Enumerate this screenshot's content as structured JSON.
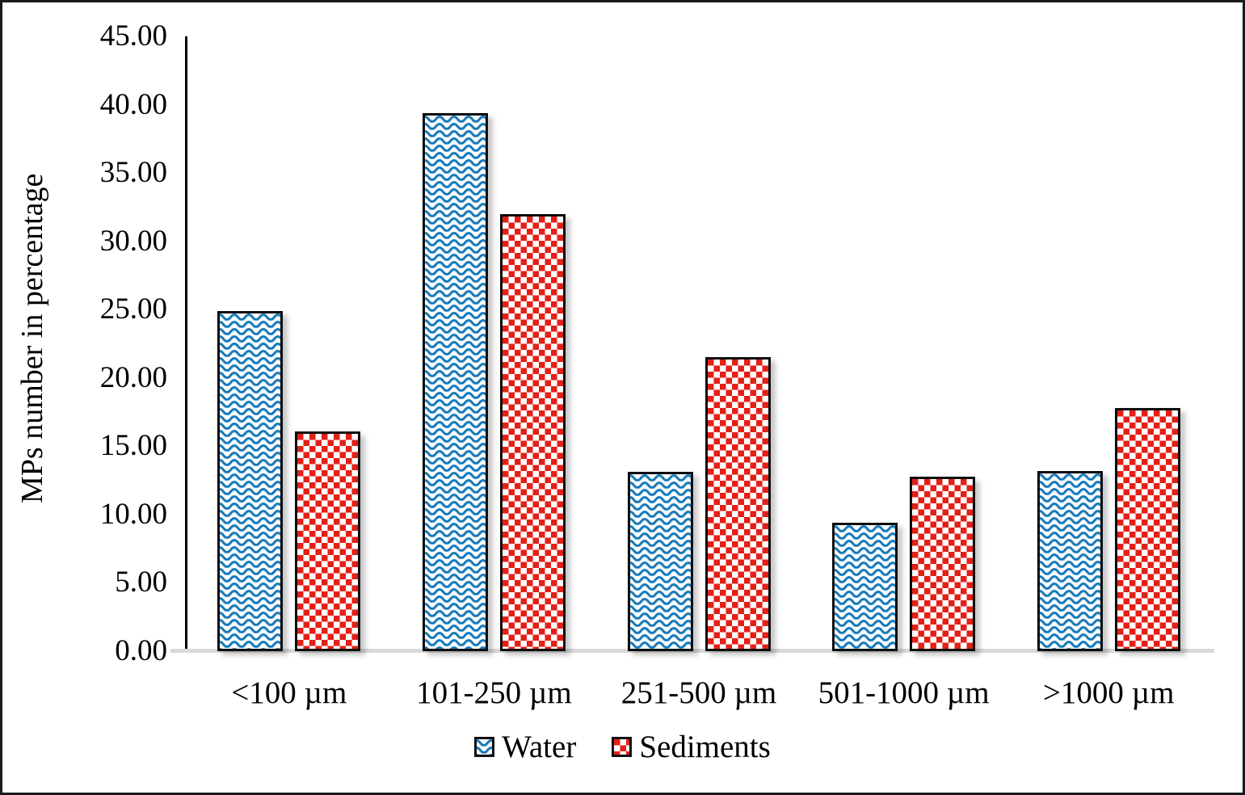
{
  "figure": {
    "background": "#ffffff",
    "border_color": "#1a1a1a"
  },
  "chart_data": {
    "type": "bar",
    "title": "",
    "categories": [
      "<100 µm",
      "101-250 µm",
      "251-500 µm",
      "501-1000 µm",
      ">1000 µm"
    ],
    "series": [
      {
        "name": "Water",
        "pattern": "wavy",
        "color": "#1878b8",
        "values": [
          24.9,
          39.4,
          13.1,
          9.4,
          13.2
        ]
      },
      {
        "name": "Sediments",
        "pattern": "checker",
        "color": "#e32017",
        "values": [
          16.1,
          32.0,
          21.5,
          12.8,
          17.8
        ]
      }
    ],
    "xlabel": "",
    "ylabel": "MPs number in percentage",
    "ylim": [
      0,
      45
    ],
    "ytick_step": 5,
    "ytick_labels": [
      "0.00",
      "5.00",
      "10.00",
      "15.00",
      "20.00",
      "25.00",
      "30.00",
      "35.00",
      "40.00",
      "45.00"
    ],
    "grid": false,
    "legend_position": "bottom",
    "axis_color": "#000000",
    "baseline_color": "#d9d9d9"
  },
  "legend": {
    "items": [
      {
        "label": "Water"
      },
      {
        "label": "Sediments"
      }
    ]
  }
}
